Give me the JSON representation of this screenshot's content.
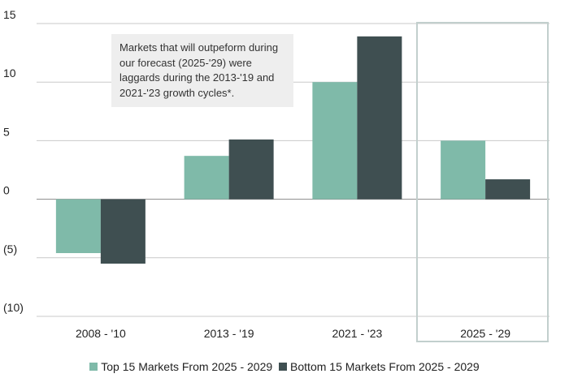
{
  "chart_data": {
    "type": "bar",
    "title": "",
    "xlabel": "",
    "ylabel": "",
    "categories": [
      "2008 - '10",
      "2013 - '19",
      "2021 - '23",
      "2025 - '29"
    ],
    "series": [
      {
        "name": "Top 15 Markets From 2025 - 2029",
        "color": "#7fbaa9",
        "values": [
          -4.6,
          3.7,
          10.0,
          5.0
        ]
      },
      {
        "name": "Bottom 15 Markets From 2025 - 2029",
        "color": "#3f4f51",
        "values": [
          -5.5,
          5.1,
          13.9,
          1.7
        ]
      }
    ],
    "ylim": [
      -10,
      15
    ],
    "yticks": [
      15,
      10,
      5,
      0,
      -5,
      -10
    ],
    "ytick_labels": [
      "15",
      "10",
      "5",
      "0",
      "(5)",
      "(10)"
    ],
    "grid": true,
    "highlighted_category": "2025 - '29",
    "annotation": "Markets that will outpeform during our forecast (2025-'29) were laggards during the 2013-'19 and 2021-'23 growth cycles*.",
    "legend_position": "bottom"
  }
}
